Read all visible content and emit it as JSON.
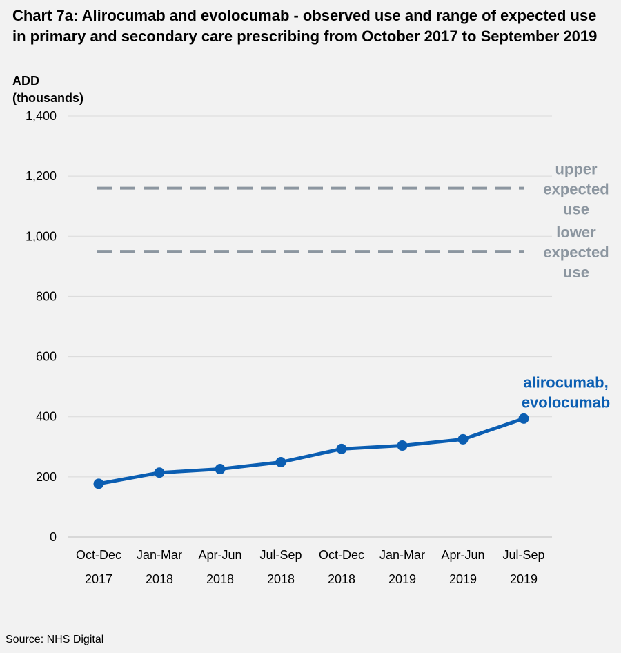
{
  "title": "Chart 7a: Alirocumab and evolocumab - observed use and range of expected use in primary and secondary care prescribing from October 2017 to September 2019",
  "source": "Source: NHS Digital",
  "chart_data": {
    "type": "line",
    "ylabel": [
      "ADD",
      "(thousands)"
    ],
    "ylim": [
      0,
      1400
    ],
    "yticks": [
      0,
      200,
      400,
      600,
      800,
      1000,
      1200,
      1400
    ],
    "ytick_labels": [
      "0",
      "200",
      "400",
      "600",
      "800",
      "1,000",
      "1,200",
      "1,400"
    ],
    "grid": true,
    "categories": [
      [
        "Oct-Dec",
        "2017"
      ],
      [
        "Jan-Mar",
        "2018"
      ],
      [
        "Apr-Jun",
        "2018"
      ],
      [
        "Jul-Sep",
        "2018"
      ],
      [
        "Oct-Dec",
        "2018"
      ],
      [
        "Jan-Mar",
        "2019"
      ],
      [
        "Apr-Jun",
        "2019"
      ],
      [
        "Jul-Sep",
        "2019"
      ]
    ],
    "series": [
      {
        "name": [
          "alirocumab,",
          "evolocumab"
        ],
        "values": [
          177,
          214,
          226,
          249,
          293,
          304,
          325,
          394
        ],
        "color": "#0b5eb2"
      }
    ],
    "reference_lines": [
      {
        "name": [
          "upper",
          "expected",
          "use"
        ],
        "value": 1160,
        "color": "#8c96a0",
        "style": "dashed"
      },
      {
        "name": [
          "lower",
          "expected",
          "use"
        ],
        "value": 950,
        "color": "#8c96a0",
        "style": "dashed"
      }
    ]
  }
}
